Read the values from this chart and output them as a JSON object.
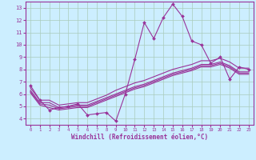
{
  "background_color": "#cceeff",
  "grid_color": "#aaccbb",
  "line_color": "#993399",
  "xlabel": "Windchill (Refroidissement éolien,°C)",
  "xlim": [
    -0.5,
    23.5
  ],
  "ylim": [
    3.5,
    13.5
  ],
  "yticks": [
    4,
    5,
    6,
    7,
    8,
    9,
    10,
    11,
    12,
    13
  ],
  "xticks": [
    0,
    1,
    2,
    3,
    4,
    5,
    6,
    7,
    8,
    9,
    10,
    11,
    12,
    13,
    14,
    15,
    16,
    17,
    18,
    19,
    20,
    21,
    22,
    23
  ],
  "line_jagged": {
    "x": [
      0,
      1,
      2,
      3,
      4,
      5,
      6,
      7,
      8,
      9,
      10,
      11,
      12,
      13,
      14,
      15,
      16,
      17,
      18,
      19,
      20,
      21,
      22,
      23
    ],
    "y": [
      6.7,
      5.5,
      4.7,
      4.9,
      5.0,
      5.2,
      4.3,
      4.4,
      4.5,
      3.8,
      6.0,
      8.8,
      11.8,
      10.5,
      12.2,
      13.3,
      12.3,
      10.3,
      10.0,
      8.5,
      9.0,
      7.2,
      8.2,
      8.0
    ]
  },
  "line_smooth1": {
    "x": [
      0,
      1,
      2,
      3,
      4,
      5,
      6,
      7,
      8,
      9,
      10,
      11,
      12,
      13,
      14,
      15,
      16,
      17,
      18,
      19,
      20,
      21,
      22,
      23
    ],
    "y": [
      6.5,
      5.5,
      5.5,
      5.1,
      5.2,
      5.3,
      5.3,
      5.6,
      5.9,
      6.3,
      6.6,
      6.9,
      7.1,
      7.4,
      7.7,
      8.0,
      8.2,
      8.4,
      8.7,
      8.7,
      8.9,
      8.6,
      8.1,
      8.1
    ]
  },
  "line_smooth2": {
    "x": [
      0,
      1,
      2,
      3,
      4,
      5,
      6,
      7,
      8,
      9,
      10,
      11,
      12,
      13,
      14,
      15,
      16,
      17,
      18,
      19,
      20,
      21,
      22,
      23
    ],
    "y": [
      6.3,
      5.3,
      5.3,
      4.9,
      5.0,
      5.1,
      5.1,
      5.4,
      5.7,
      6.0,
      6.3,
      6.6,
      6.8,
      7.1,
      7.4,
      7.7,
      7.9,
      8.1,
      8.4,
      8.4,
      8.6,
      8.3,
      7.8,
      7.8
    ]
  },
  "line_smooth3": {
    "x": [
      0,
      1,
      2,
      3,
      4,
      5,
      6,
      7,
      8,
      9,
      10,
      11,
      12,
      13,
      14,
      15,
      16,
      17,
      18,
      19,
      20,
      21,
      22,
      23
    ],
    "y": [
      6.2,
      5.2,
      5.1,
      4.8,
      4.9,
      5.0,
      5.0,
      5.3,
      5.6,
      5.9,
      6.2,
      6.5,
      6.7,
      7.0,
      7.3,
      7.6,
      7.8,
      8.0,
      8.3,
      8.3,
      8.5,
      8.2,
      7.7,
      7.7
    ]
  },
  "line_smooth4": {
    "x": [
      0,
      1,
      2,
      3,
      4,
      5,
      6,
      7,
      8,
      9,
      10,
      11,
      12,
      13,
      14,
      15,
      16,
      17,
      18,
      19,
      20,
      21,
      22,
      23
    ],
    "y": [
      6.1,
      5.1,
      4.9,
      4.7,
      4.8,
      4.9,
      4.9,
      5.2,
      5.5,
      5.8,
      6.1,
      6.4,
      6.6,
      6.9,
      7.2,
      7.5,
      7.7,
      7.9,
      8.2,
      8.2,
      8.4,
      8.1,
      7.6,
      7.6
    ]
  }
}
